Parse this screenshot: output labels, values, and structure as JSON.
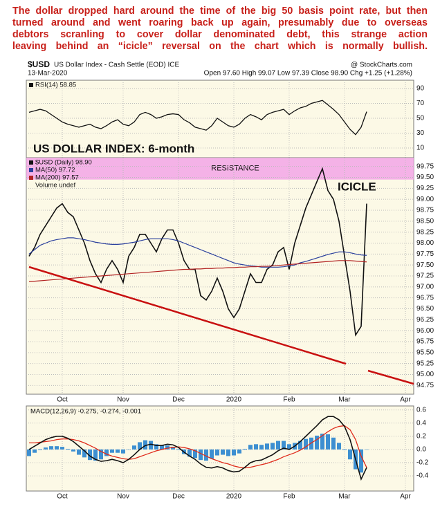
{
  "commentary": [
    "The dollar dropped hard around the time of the big 50 basis point rate, but then",
    "turned around and went roaring back up again, presumably due to overseas",
    "debtors scranling to cover dollar denominated debt, this strange action",
    "leaving behind an “icicle” reversal on the chart which is normally bullish."
  ],
  "header": {
    "symbol": "$USD",
    "name": "US Dollar Index - Cash Settle (EOD) ICE",
    "source": "@ StockCharts.com",
    "date": "13-Mar-2020",
    "quote": "Open 97.60  High 99.07  Low 97.39  Close 98.90  Chg +1.25 (+1.28%)"
  },
  "chart_data": [
    {
      "type": "line",
      "ylim": [
        0,
        100
      ],
      "yticks": [
        10,
        30,
        50,
        70,
        90
      ],
      "grid": true,
      "series": [
        {
          "name": "RSI(14) 58.85",
          "color": "#111111",
          "values": [
            58,
            60,
            62,
            60,
            55,
            50,
            45,
            42,
            40,
            38,
            40,
            42,
            38,
            36,
            40,
            45,
            48,
            42,
            40,
            45,
            55,
            58,
            55,
            50,
            52,
            55,
            56,
            55,
            48,
            44,
            38,
            36,
            34,
            40,
            50,
            45,
            40,
            38,
            42,
            50,
            55,
            52,
            48,
            55,
            58,
            60,
            62,
            55,
            60,
            64,
            66,
            70,
            72,
            74,
            68,
            62,
            55,
            45,
            35,
            28,
            38,
            58.85,
            null,
            null,
            null,
            null,
            null,
            null,
            null,
            null
          ]
        }
      ]
    },
    {
      "type": "line",
      "title": "US DOLLAR INDEX: 6-month",
      "annotation": "ICICLE",
      "annotation_color": "#c8650f",
      "title_color": "#1e7a1e",
      "bands": [
        {
          "label": "RESISTANCE",
          "range": [
            99.45,
            99.95
          ],
          "color": "#f2a6e6"
        }
      ],
      "categories": [
        null,
        null,
        null,
        null,
        null,
        null,
        "Oct",
        null,
        null,
        null,
        null,
        null,
        null,
        null,
        null,
        null,
        null,
        "Nov",
        null,
        null,
        null,
        null,
        null,
        null,
        null,
        null,
        null,
        "Dec",
        null,
        null,
        null,
        null,
        null,
        null,
        null,
        null,
        null,
        "2020",
        null,
        null,
        null,
        null,
        null,
        null,
        null,
        null,
        null,
        "Feb",
        null,
        null,
        null,
        null,
        null,
        null,
        null,
        null,
        null,
        "Mar",
        null,
        null,
        null,
        null,
        null,
        null,
        null,
        null,
        null,
        null,
        "Apr",
        null
      ],
      "ylim": [
        94.55,
        99.95
      ],
      "yticks": [
        94.75,
        {
          "value": 95,
          "label": "95.00"
        },
        95.25,
        {
          "value": 95.5,
          "label": "95.50"
        },
        95.75,
        {
          "value": 96,
          "label": "96.00"
        },
        96.25,
        {
          "value": 96.5,
          "label": "96.50"
        },
        96.75,
        {
          "value": 97,
          "label": "97.00"
        },
        97.25,
        {
          "value": 97.5,
          "label": "97.50"
        },
        97.75,
        {
          "value": 98,
          "label": "98.00"
        },
        98.25,
        {
          "value": 98.5,
          "label": "98.50"
        },
        98.75,
        {
          "value": 99,
          "label": "99.00"
        },
        99.25,
        {
          "value": 99.5,
          "label": "99.50"
        },
        99.75
      ],
      "grid": true,
      "legend_extra": "Volume undef",
      "series": [
        {
          "name": "$USD (Daily) 98.90",
          "color": "#111111",
          "width": 1.6,
          "values": [
            97.7,
            97.9,
            98.2,
            98.4,
            98.6,
            98.8,
            98.9,
            98.7,
            98.6,
            98.3,
            98.0,
            97.6,
            97.3,
            97.1,
            97.4,
            97.6,
            97.4,
            97.1,
            97.7,
            97.9,
            98.2,
            98.2,
            98.0,
            97.8,
            98.1,
            98.3,
            98.3,
            98.0,
            97.6,
            97.4,
            97.4,
            96.8,
            96.7,
            96.9,
            97.2,
            96.9,
            96.5,
            96.3,
            96.5,
            96.9,
            97.3,
            97.1,
            97.1,
            97.4,
            97.5,
            97.8,
            97.9,
            97.4,
            98.0,
            98.4,
            98.8,
            99.1,
            99.4,
            99.7,
            99.2,
            99.0,
            98.5,
            97.7,
            96.9,
            95.9,
            96.1,
            98.9,
            null,
            null,
            null,
            null,
            null,
            null,
            null,
            null
          ]
        },
        {
          "name": "MA(50) 97.72",
          "color": "#2a3f9d",
          "width": 1.2,
          "values": [
            97.75,
            97.85,
            97.95,
            98.0,
            98.05,
            98.08,
            98.1,
            98.12,
            98.12,
            98.1,
            98.08,
            98.05,
            98.02,
            98.0,
            97.98,
            97.97,
            97.97,
            97.98,
            98.0,
            98.02,
            98.05,
            98.08,
            98.1,
            98.1,
            98.1,
            98.1,
            98.08,
            98.05,
            98.0,
            97.95,
            97.9,
            97.85,
            97.8,
            97.75,
            97.7,
            97.65,
            97.6,
            97.55,
            97.52,
            97.5,
            97.48,
            97.47,
            97.45,
            97.45,
            97.45,
            97.45,
            97.46,
            97.48,
            97.5,
            97.55,
            97.58,
            97.62,
            97.66,
            97.7,
            97.74,
            97.77,
            97.8,
            97.8,
            97.78,
            97.75,
            97.73,
            97.72,
            null,
            null,
            null,
            null,
            null,
            null,
            null,
            null
          ]
        },
        {
          "name": "MA(200) 97.57",
          "color": "#b22222",
          "width": 1.2,
          "values": [
            97.12,
            97.13,
            97.14,
            97.15,
            97.16,
            97.17,
            97.18,
            97.19,
            97.2,
            97.21,
            97.22,
            97.23,
            97.24,
            97.25,
            97.26,
            97.27,
            97.28,
            97.29,
            97.3,
            97.31,
            97.32,
            97.33,
            97.34,
            97.35,
            97.36,
            97.37,
            97.38,
            97.39,
            97.4,
            97.4,
            97.41,
            97.41,
            97.42,
            97.42,
            97.43,
            97.43,
            97.44,
            97.44,
            97.45,
            97.45,
            97.46,
            97.46,
            97.47,
            97.47,
            97.48,
            97.49,
            97.5,
            97.51,
            97.52,
            97.53,
            97.54,
            97.55,
            97.56,
            97.57,
            97.58,
            97.59,
            97.6,
            97.6,
            97.6,
            97.59,
            97.58,
            97.57,
            null,
            null,
            null,
            null,
            null,
            null,
            null,
            null
          ]
        }
      ]
    },
    {
      "type": "line",
      "legend": "MACD(12,26,9) -0.275, -0.274, -0.001",
      "categories": [
        null,
        null,
        null,
        null,
        null,
        null,
        "Oct",
        null,
        null,
        null,
        null,
        null,
        null,
        null,
        null,
        null,
        null,
        "Nov",
        null,
        null,
        null,
        null,
        null,
        null,
        null,
        null,
        null,
        "Dec",
        null,
        null,
        null,
        null,
        null,
        null,
        null,
        null,
        null,
        "2020",
        null,
        null,
        null,
        null,
        null,
        null,
        null,
        null,
        null,
        "Feb",
        null,
        null,
        null,
        null,
        null,
        null,
        null,
        null,
        null,
        "Mar",
        null,
        null,
        null,
        null,
        null,
        null,
        null,
        null,
        null,
        null,
        "Apr",
        null
      ],
      "ylim": [
        -0.63,
        0.66
      ],
      "yticks": [
        -0.4,
        -0.2,
        {
          "value": 0,
          "label": "0.0"
        },
        0.2,
        0.4,
        0.6
      ],
      "grid": true,
      "series": [
        {
          "kind": "bar",
          "color": "#3d8fd1",
          "values": [
            -0.1,
            -0.05,
            -0.01,
            0.03,
            0.05,
            0.05,
            0.04,
            0.01,
            -0.03,
            -0.08,
            -0.12,
            -0.16,
            -0.17,
            -0.15,
            -0.1,
            -0.05,
            -0.05,
            -0.06,
            0.0,
            0.06,
            0.11,
            0.14,
            0.13,
            0.08,
            0.06,
            0.06,
            0.04,
            -0.01,
            -0.07,
            -0.11,
            -0.13,
            -0.16,
            -0.17,
            -0.14,
            -0.09,
            -0.08,
            -0.1,
            -0.09,
            -0.06,
            0.01,
            0.07,
            0.08,
            0.07,
            0.09,
            0.1,
            0.13,
            0.13,
            0.08,
            0.1,
            0.13,
            0.16,
            0.18,
            0.21,
            0.24,
            0.23,
            0.18,
            0.1,
            -0.01,
            -0.15,
            -0.3,
            -0.35,
            -0.001,
            null,
            null,
            null,
            null,
            null,
            null,
            null,
            null
          ]
        },
        {
          "kind": "line",
          "color": "#e02a1a",
          "width": 1.3,
          "values": [
            0.1,
            0.1,
            0.11,
            0.12,
            0.13,
            0.15,
            0.16,
            0.16,
            0.15,
            0.13,
            0.1,
            0.06,
            0.02,
            -0.03,
            -0.07,
            -0.1,
            -0.12,
            -0.14,
            -0.15,
            -0.14,
            -0.11,
            -0.08,
            -0.05,
            -0.02,
            0.0,
            0.02,
            0.03,
            0.04,
            0.03,
            0.01,
            -0.02,
            -0.06,
            -0.1,
            -0.14,
            -0.17,
            -0.2,
            -0.22,
            -0.25,
            -0.27,
            -0.28,
            -0.27,
            -0.25,
            -0.23,
            -0.21,
            -0.18,
            -0.15,
            -0.11,
            -0.08,
            -0.05,
            -0.01,
            0.04,
            0.1,
            0.15,
            0.21,
            0.27,
            0.32,
            0.35,
            0.36,
            0.3,
            0.15,
            -0.1,
            -0.274,
            null,
            null,
            null,
            null,
            null,
            null,
            null,
            null
          ]
        },
        {
          "kind": "line",
          "color": "#111111",
          "width": 1.6,
          "values": [
            0.0,
            0.05,
            0.1,
            0.15,
            0.18,
            0.2,
            0.2,
            0.17,
            0.12,
            0.05,
            -0.02,
            -0.1,
            -0.15,
            -0.18,
            -0.17,
            -0.15,
            -0.17,
            -0.2,
            -0.15,
            -0.08,
            0.0,
            0.06,
            0.08,
            0.06,
            0.06,
            0.08,
            0.07,
            0.03,
            -0.04,
            -0.1,
            -0.15,
            -0.22,
            -0.27,
            -0.28,
            -0.26,
            -0.28,
            -0.32,
            -0.34,
            -0.33,
            -0.27,
            -0.2,
            -0.17,
            -0.16,
            -0.12,
            -0.08,
            -0.02,
            0.02,
            0.0,
            0.05,
            0.12,
            0.2,
            0.28,
            0.36,
            0.45,
            0.5,
            0.5,
            0.45,
            0.35,
            0.15,
            -0.15,
            -0.45,
            -0.275,
            null,
            null,
            null,
            null,
            null,
            null,
            null,
            null
          ]
        }
      ]
    }
  ]
}
